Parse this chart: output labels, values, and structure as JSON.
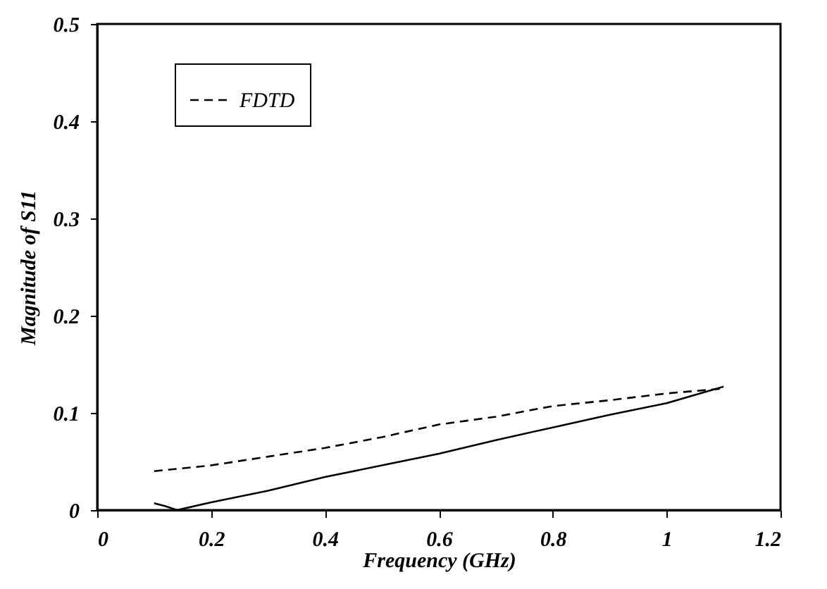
{
  "chart_data": {
    "type": "line",
    "xlabel": "Frequency (GHz)",
    "ylabel": "Magnitude of S11",
    "xlim": [
      0,
      1.2
    ],
    "xticks": [
      0,
      0.2,
      0.4,
      0.6,
      0.8,
      1,
      1.2
    ],
    "ylim": [
      0,
      0.5
    ],
    "yticks": [
      0,
      0.1,
      0.2,
      0.3,
      0.4,
      0.5
    ],
    "grid": false,
    "legend": "top left",
    "marker": "none",
    "series": [
      {
        "color": "#000000",
        "line_style": "solid",
        "x": [
          0.1,
          0.12,
          0.14,
          0.2,
          0.3,
          0.4,
          0.5,
          0.6,
          0.7,
          0.8,
          0.9,
          1.0,
          1.1
        ],
        "values": [
          0.007,
          0.004,
          0.0,
          0.008,
          0.02,
          0.034,
          0.046,
          0.058,
          0.072,
          0.085,
          0.098,
          0.11,
          0.127
        ]
      },
      {
        "name": "FDTD",
        "color": "#000000",
        "line_style": "dashed",
        "x": [
          0.1,
          0.2,
          0.3,
          0.4,
          0.5,
          0.6,
          0.7,
          0.8,
          0.9,
          1.0,
          1.1
        ],
        "values": [
          0.04,
          0.046,
          0.055,
          0.064,
          0.075,
          0.088,
          0.096,
          0.107,
          0.113,
          0.12,
          0.125
        ]
      }
    ]
  }
}
